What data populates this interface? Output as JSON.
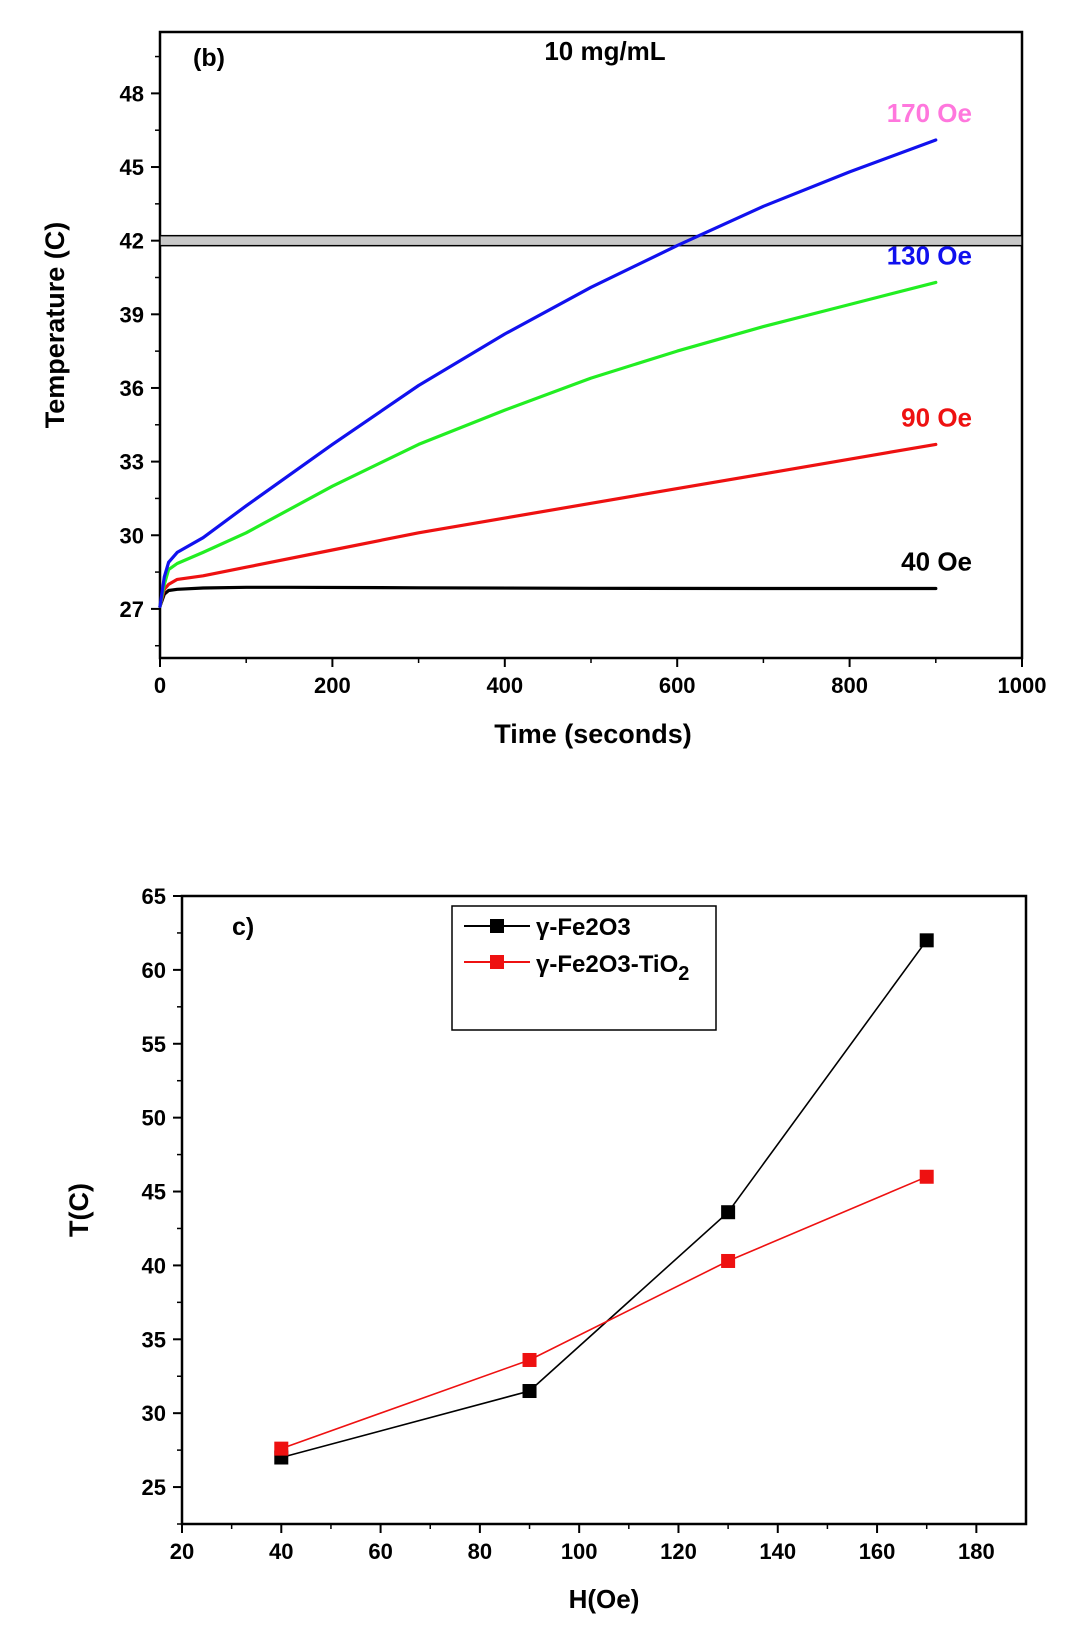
{
  "chart_data": [
    {
      "type": "line",
      "panel_label": "(b)",
      "title": "10 mg/mL",
      "xlabel": "Time (seconds)",
      "ylabel": "Temperature (C)",
      "xlim": [
        0,
        1000
      ],
      "ylim": [
        25,
        50.5
      ],
      "xticks": [
        0,
        200,
        400,
        600,
        800,
        1000
      ],
      "yticks": [
        27,
        30,
        33,
        36,
        39,
        42,
        45,
        48
      ],
      "grid": false,
      "reference_line": {
        "y": 42,
        "color": "#c8c8c8"
      },
      "series": [
        {
          "name": "40 Oe",
          "color": "#000000",
          "label_color": "#000000",
          "x": [
            0,
            5,
            10,
            20,
            50,
            100,
            150,
            300,
            500,
            700,
            900
          ],
          "y": [
            27.1,
            27.6,
            27.75,
            27.8,
            27.85,
            27.88,
            27.88,
            27.86,
            27.84,
            27.83,
            27.83
          ]
        },
        {
          "name": "90 Oe",
          "color": "#ee1111",
          "label_color": "#ee1111",
          "x": [
            0,
            5,
            10,
            20,
            50,
            100,
            200,
            300,
            400,
            500,
            600,
            700,
            800,
            900
          ],
          "y": [
            27.1,
            27.8,
            28.0,
            28.2,
            28.35,
            28.7,
            29.4,
            30.1,
            30.7,
            31.3,
            31.9,
            32.5,
            33.1,
            33.7
          ]
        },
        {
          "name": "130 Oe",
          "color": "#22ee22",
          "label_color": "#1010ee",
          "x": [
            0,
            5,
            10,
            20,
            50,
            100,
            200,
            300,
            400,
            500,
            600,
            700,
            800,
            900
          ],
          "y": [
            27.1,
            28.0,
            28.6,
            28.85,
            29.3,
            30.1,
            32.0,
            33.7,
            35.1,
            36.4,
            37.5,
            38.5,
            39.4,
            40.3
          ]
        },
        {
          "name": "170 Oe",
          "color": "#1111ee",
          "label_color": "#ff77dd",
          "x": [
            0,
            5,
            10,
            20,
            50,
            100,
            200,
            300,
            400,
            500,
            600,
            700,
            800,
            900
          ],
          "y": [
            27.1,
            28.3,
            28.9,
            29.3,
            29.9,
            31.2,
            33.7,
            36.1,
            38.2,
            40.1,
            41.8,
            43.4,
            44.8,
            46.1
          ]
        }
      ]
    },
    {
      "type": "line",
      "panel_label": "c)",
      "xlabel": "H(Oe)",
      "ylabel": "T(C)",
      "xlim": [
        20,
        190
      ],
      "ylim": [
        22.5,
        65
      ],
      "xticks": [
        20,
        40,
        60,
        80,
        100,
        120,
        140,
        160,
        180
      ],
      "yticks": [
        25,
        30,
        35,
        40,
        45,
        50,
        55,
        60,
        65
      ],
      "grid": false,
      "legend_position": "top-center",
      "series": [
        {
          "name": "γ-Fe2O3",
          "color": "#000000",
          "marker": "square",
          "x": [
            40,
            90,
            130,
            170
          ],
          "y": [
            27.0,
            31.5,
            43.6,
            62.0
          ]
        },
        {
          "name": "γ-Fe2O3-TiO",
          "name_subscript": "2",
          "color": "#ee1111",
          "marker": "square",
          "x": [
            40,
            90,
            130,
            170
          ],
          "y": [
            27.6,
            33.6,
            40.3,
            46.0
          ]
        }
      ]
    }
  ]
}
